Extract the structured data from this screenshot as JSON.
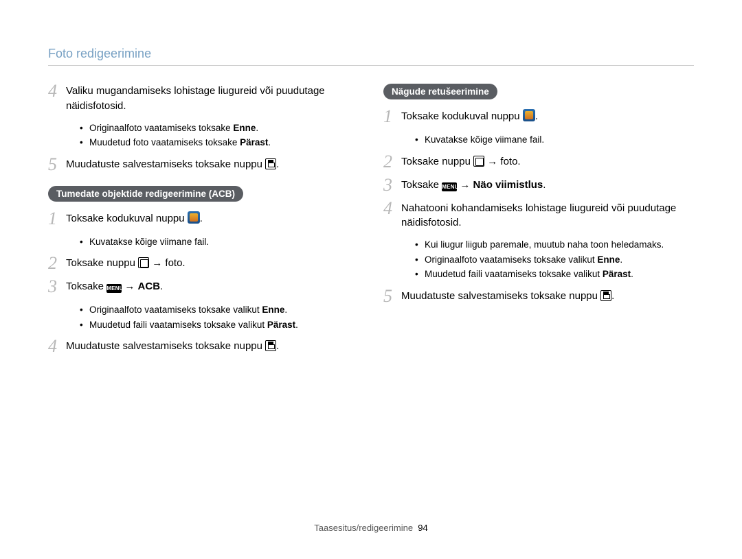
{
  "header": {
    "title": "Foto redigeerimine"
  },
  "footer": {
    "section": "Taasesitus/redigeerimine",
    "page": "94"
  },
  "left": {
    "step4": {
      "num": "4",
      "text": "Valiku mugandamiseks lohistage liugureid või puudutage näidisfotosid.",
      "bullets": [
        {
          "pre": "Originaalfoto vaatamiseks toksake ",
          "bold": "Enne",
          "post": "."
        },
        {
          "pre": "Muudetud foto vaatamiseks toksake ",
          "bold": "Pärast",
          "post": "."
        }
      ]
    },
    "step5": {
      "num": "5",
      "text_before": "Muudatuste salvestamiseks toksake nuppu ",
      "text_after": "."
    },
    "pill": "Tumedate objektide redigeerimine (ACB)",
    "acb": {
      "s1": {
        "num": "1",
        "text_before": "Toksake kodukuval nuppu ",
        "text_after": ".",
        "bullets": [
          "Kuvatakse kõige viimane fail."
        ]
      },
      "s2": {
        "num": "2",
        "text_before": "Toksake nuppu ",
        "text_after": " → foto."
      },
      "s3": {
        "num": "3",
        "text_before": "Toksake ",
        "arrow": " → ",
        "bold": "ACB",
        "text_after": ".",
        "bullets": [
          {
            "pre": "Originaalfoto vaatamiseks toksake valikut ",
            "bold": "Enne",
            "post": "."
          },
          {
            "pre": "Muudetud faili vaatamiseks toksake valikut ",
            "bold": "Pärast",
            "post": "."
          }
        ]
      },
      "s4": {
        "num": "4",
        "text_before": "Muudatuste salvestamiseks toksake nuppu ",
        "text_after": "."
      }
    }
  },
  "right": {
    "pill": "Nägude retušeerimine",
    "s1": {
      "num": "1",
      "text_before": "Toksake kodukuval nuppu ",
      "text_after": ".",
      "bullets": [
        "Kuvatakse kõige viimane fail."
      ]
    },
    "s2": {
      "num": "2",
      "text_before": "Toksake nuppu ",
      "text_after": " → foto."
    },
    "s3": {
      "num": "3",
      "text_before": "Toksake ",
      "arrow": " → ",
      "bold": "Näo viimistlus",
      "text_after": "."
    },
    "s4": {
      "num": "4",
      "text": "Nahatooni kohandamiseks lohistage liugureid või puudutage näidisfotosid.",
      "bullets": [
        {
          "pre": "Kui liugur liigub paremale, muutub naha toon heledamaks.",
          "bold": "",
          "post": ""
        },
        {
          "pre": "Originaalfoto vaatamiseks toksake valikut ",
          "bold": "Enne",
          "post": "."
        },
        {
          "pre": "Muudetud faili vaatamiseks toksake valikut ",
          "bold": "Pärast",
          "post": "."
        }
      ]
    },
    "s5": {
      "num": "5",
      "text_before": "Muudatuste salvestamiseks toksake nuppu ",
      "text_after": "."
    }
  },
  "menu_label": "MENU"
}
